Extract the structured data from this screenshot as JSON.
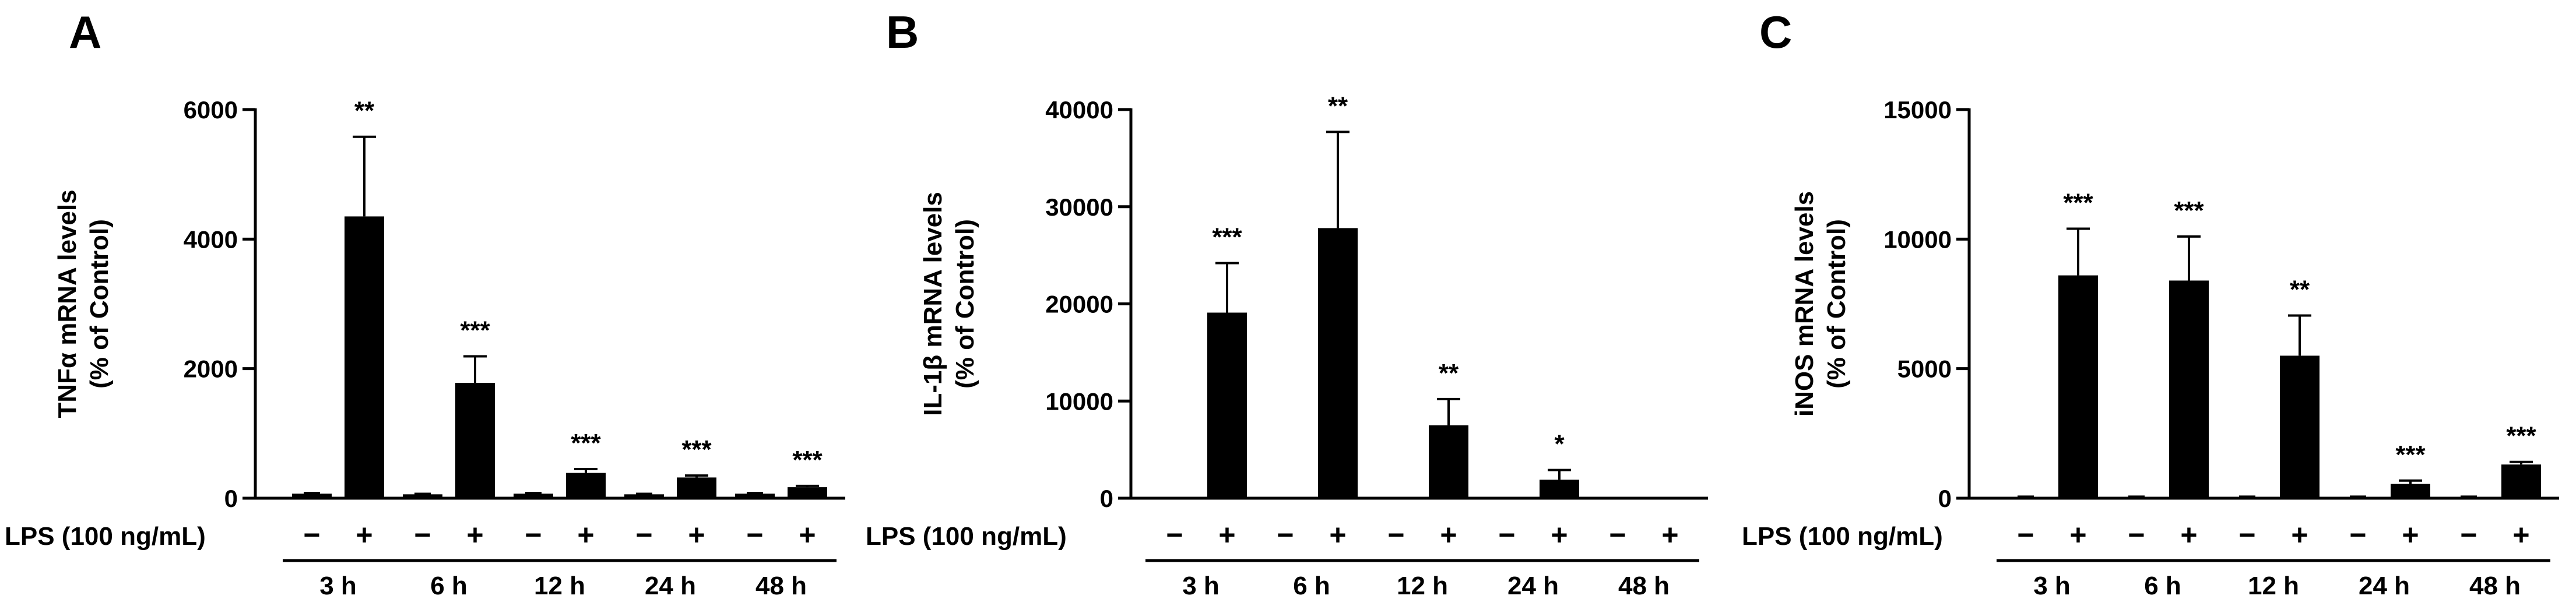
{
  "chart_data": [
    {
      "type": "bar",
      "panel": "A",
      "ylabel_line1": "TNFα  mRNA levels",
      "ylabel_line2": "(% of Control)",
      "ylim": [
        0,
        6000
      ],
      "yticks": [
        "0",
        "2000",
        "4000",
        "6000"
      ],
      "ytick_values": [
        0,
        2000,
        4000,
        6000
      ],
      "lps_label": "LPS (100 ng/mL)",
      "minus_sign": "−",
      "plus_sign": "+",
      "groups": [
        "3 h",
        "6 h",
        "12 h",
        "24 h",
        "48 h"
      ],
      "control_values": [
        70,
        60,
        70,
        60,
        70
      ],
      "control_errors": [
        10,
        8,
        10,
        8,
        10
      ],
      "lps_values": [
        4350,
        1780,
        390,
        320,
        170
      ],
      "lps_errors": [
        1230,
        410,
        60,
        30,
        20
      ],
      "significance": [
        "**",
        "***",
        "***",
        "***",
        "***"
      ]
    },
    {
      "type": "bar",
      "panel": "B",
      "ylabel_line1": "IL-1β mRNA levels",
      "ylabel_line2": "(% of Control)",
      "ylim": [
        0,
        40000
      ],
      "yticks": [
        "0",
        "10000",
        "20000",
        "30000",
        "40000"
      ],
      "ytick_values": [
        0,
        10000,
        20000,
        30000,
        40000
      ],
      "lps_label": "LPS (100 ng/mL)",
      "minus_sign": "−",
      "plus_sign": "+",
      "groups": [
        "3 h",
        "6 h",
        "12 h",
        "24 h",
        "48 h"
      ],
      "control_values": [
        0,
        0,
        0,
        0,
        0
      ],
      "control_errors": [
        0,
        0,
        0,
        0,
        0
      ],
      "lps_values": [
        19100,
        27800,
        7500,
        1900,
        0
      ],
      "lps_errors": [
        5100,
        9900,
        2700,
        1000,
        0
      ],
      "significance": [
        "***",
        "**",
        "**",
        "*",
        ""
      ]
    },
    {
      "type": "bar",
      "panel": "C",
      "ylabel_line1": "iNOS mRNA levels",
      "ylabel_line2": "(% of Control)",
      "ylim": [
        0,
        15000
      ],
      "yticks": [
        "0",
        "5000",
        "10000",
        "15000"
      ],
      "ytick_values": [
        0,
        5000,
        10000,
        15000
      ],
      "lps_label": "LPS (100 ng/mL)",
      "minus_sign": "−",
      "plus_sign": "+",
      "groups": [
        "3 h",
        "6 h",
        "12 h",
        "24 h",
        "48 h"
      ],
      "control_values": [
        50,
        50,
        50,
        50,
        50
      ],
      "control_errors": [
        10,
        10,
        10,
        10,
        10
      ],
      "lps_values": [
        8600,
        8400,
        5500,
        550,
        1300
      ],
      "lps_errors": [
        1800,
        1700,
        1550,
        130,
        100
      ],
      "significance": [
        "***",
        "***",
        "**",
        "***",
        "***"
      ]
    }
  ]
}
